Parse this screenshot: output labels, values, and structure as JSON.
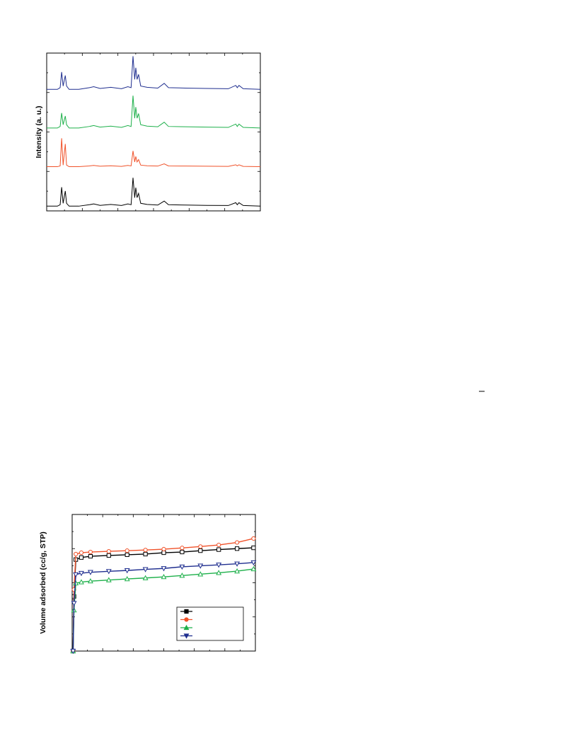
{
  "chart_data": [
    {
      "type": "line",
      "y_label": "Intensity (a. u.)",
      "xlim": [
        0,
        100
      ],
      "ylim": [
        0,
        100
      ],
      "x": [
        0,
        5,
        6.3,
        7,
        7.7,
        8.7,
        9.3,
        10.5,
        15,
        20,
        22,
        25,
        30,
        35,
        38,
        39.5,
        40.4,
        41.2,
        41.7,
        42.3,
        43,
        44,
        47,
        52,
        55,
        57,
        65,
        75,
        85,
        88.5,
        89.2,
        90,
        92,
        100
      ],
      "series": [
        {
          "color": "#000000",
          "values": [
            3,
            3,
            3.9,
            15,
            4.8,
            12.6,
            4.8,
            3,
            3,
            3.9,
            4.4,
            3.5,
            4.1,
            3.4,
            4.4,
            3.9,
            21,
            8.4,
            14.7,
            8.4,
            11.1,
            4.8,
            4.1,
            3.7,
            6.2,
            3.9,
            3.7,
            3.5,
            3.4,
            5.2,
            3.9,
            5.2,
            3.4,
            3
          ]
        },
        {
          "color": "#f0522a",
          "values": [
            28,
            28,
            28.5,
            46,
            29,
            42.4,
            29,
            28,
            28,
            28.5,
            28.8,
            28.3,
            28.6,
            28.2,
            28.8,
            28.5,
            38,
            31,
            34.5,
            31,
            32.5,
            29,
            28.6,
            28.4,
            29.8,
            28.5,
            28.4,
            28.3,
            28.2,
            29.2,
            28.5,
            29.2,
            28.2,
            28
          ]
        },
        {
          "color": "#1db04a",
          "values": [
            52.5,
            52.5,
            53.5,
            62,
            54.6,
            60.1,
            54.6,
            52.5,
            52.5,
            53.5,
            54.1,
            53.1,
            53.7,
            52.9,
            54.1,
            53.5,
            73,
            58.7,
            65.8,
            58.7,
            61.7,
            54.6,
            53.7,
            53.3,
            56.2,
            53.5,
            53.3,
            53.1,
            52.9,
            55,
            53.5,
            55,
            52.9,
            52.5
          ]
        },
        {
          "color": "#1f2e8f",
          "values": [
            77,
            77,
            78.1,
            88,
            79.1,
            85.8,
            79.1,
            77,
            77,
            78.1,
            78.7,
            77.6,
            78.3,
            77.4,
            78.7,
            78.1,
            98,
            83.3,
            90.7,
            83.3,
            86.5,
            79.1,
            78.3,
            77.8,
            80.8,
            78.1,
            77.8,
            77.6,
            77.4,
            79.5,
            78.1,
            79.5,
            77.4,
            77
          ]
        }
      ]
    },
    {
      "type": "line",
      "y_label": "Volume adsorbed (cc/g, STP)",
      "markers": true,
      "legend": "lower right",
      "xlim": [
        0,
        1
      ],
      "ylim": [
        0,
        100
      ],
      "x": [
        0.005,
        0.01,
        0.02,
        0.05,
        0.1,
        0.2,
        0.3,
        0.4,
        0.5,
        0.6,
        0.7,
        0.8,
        0.9,
        0.99
      ],
      "series": [
        {
          "color": "#000000",
          "marker": "square",
          "values": [
            0,
            40,
            67,
            68.5,
            69.4,
            70,
            70.5,
            71,
            72,
            72.5,
            73.5,
            74.3,
            75,
            75.6
          ]
        },
        {
          "color": "#f0522a",
          "marker": "circle",
          "values": [
            0,
            45,
            71,
            72,
            72.5,
            73,
            73.5,
            74,
            74.6,
            75.5,
            76.5,
            77.7,
            79.5,
            82.4
          ]
        },
        {
          "color": "#1db04a",
          "marker": "triangle-up",
          "values": [
            0,
            30,
            49.7,
            50.5,
            51.2,
            52,
            52.8,
            53.5,
            54.3,
            55.3,
            56.3,
            57.3,
            58.5,
            60.1
          ]
        },
        {
          "color": "#1f2e8f",
          "marker": "triangle-down",
          "values": [
            0,
            35,
            56,
            57,
            57.7,
            58.4,
            59,
            59.8,
            60.5,
            61.7,
            62.4,
            63.1,
            63.9,
            64.8
          ]
        }
      ]
    }
  ]
}
